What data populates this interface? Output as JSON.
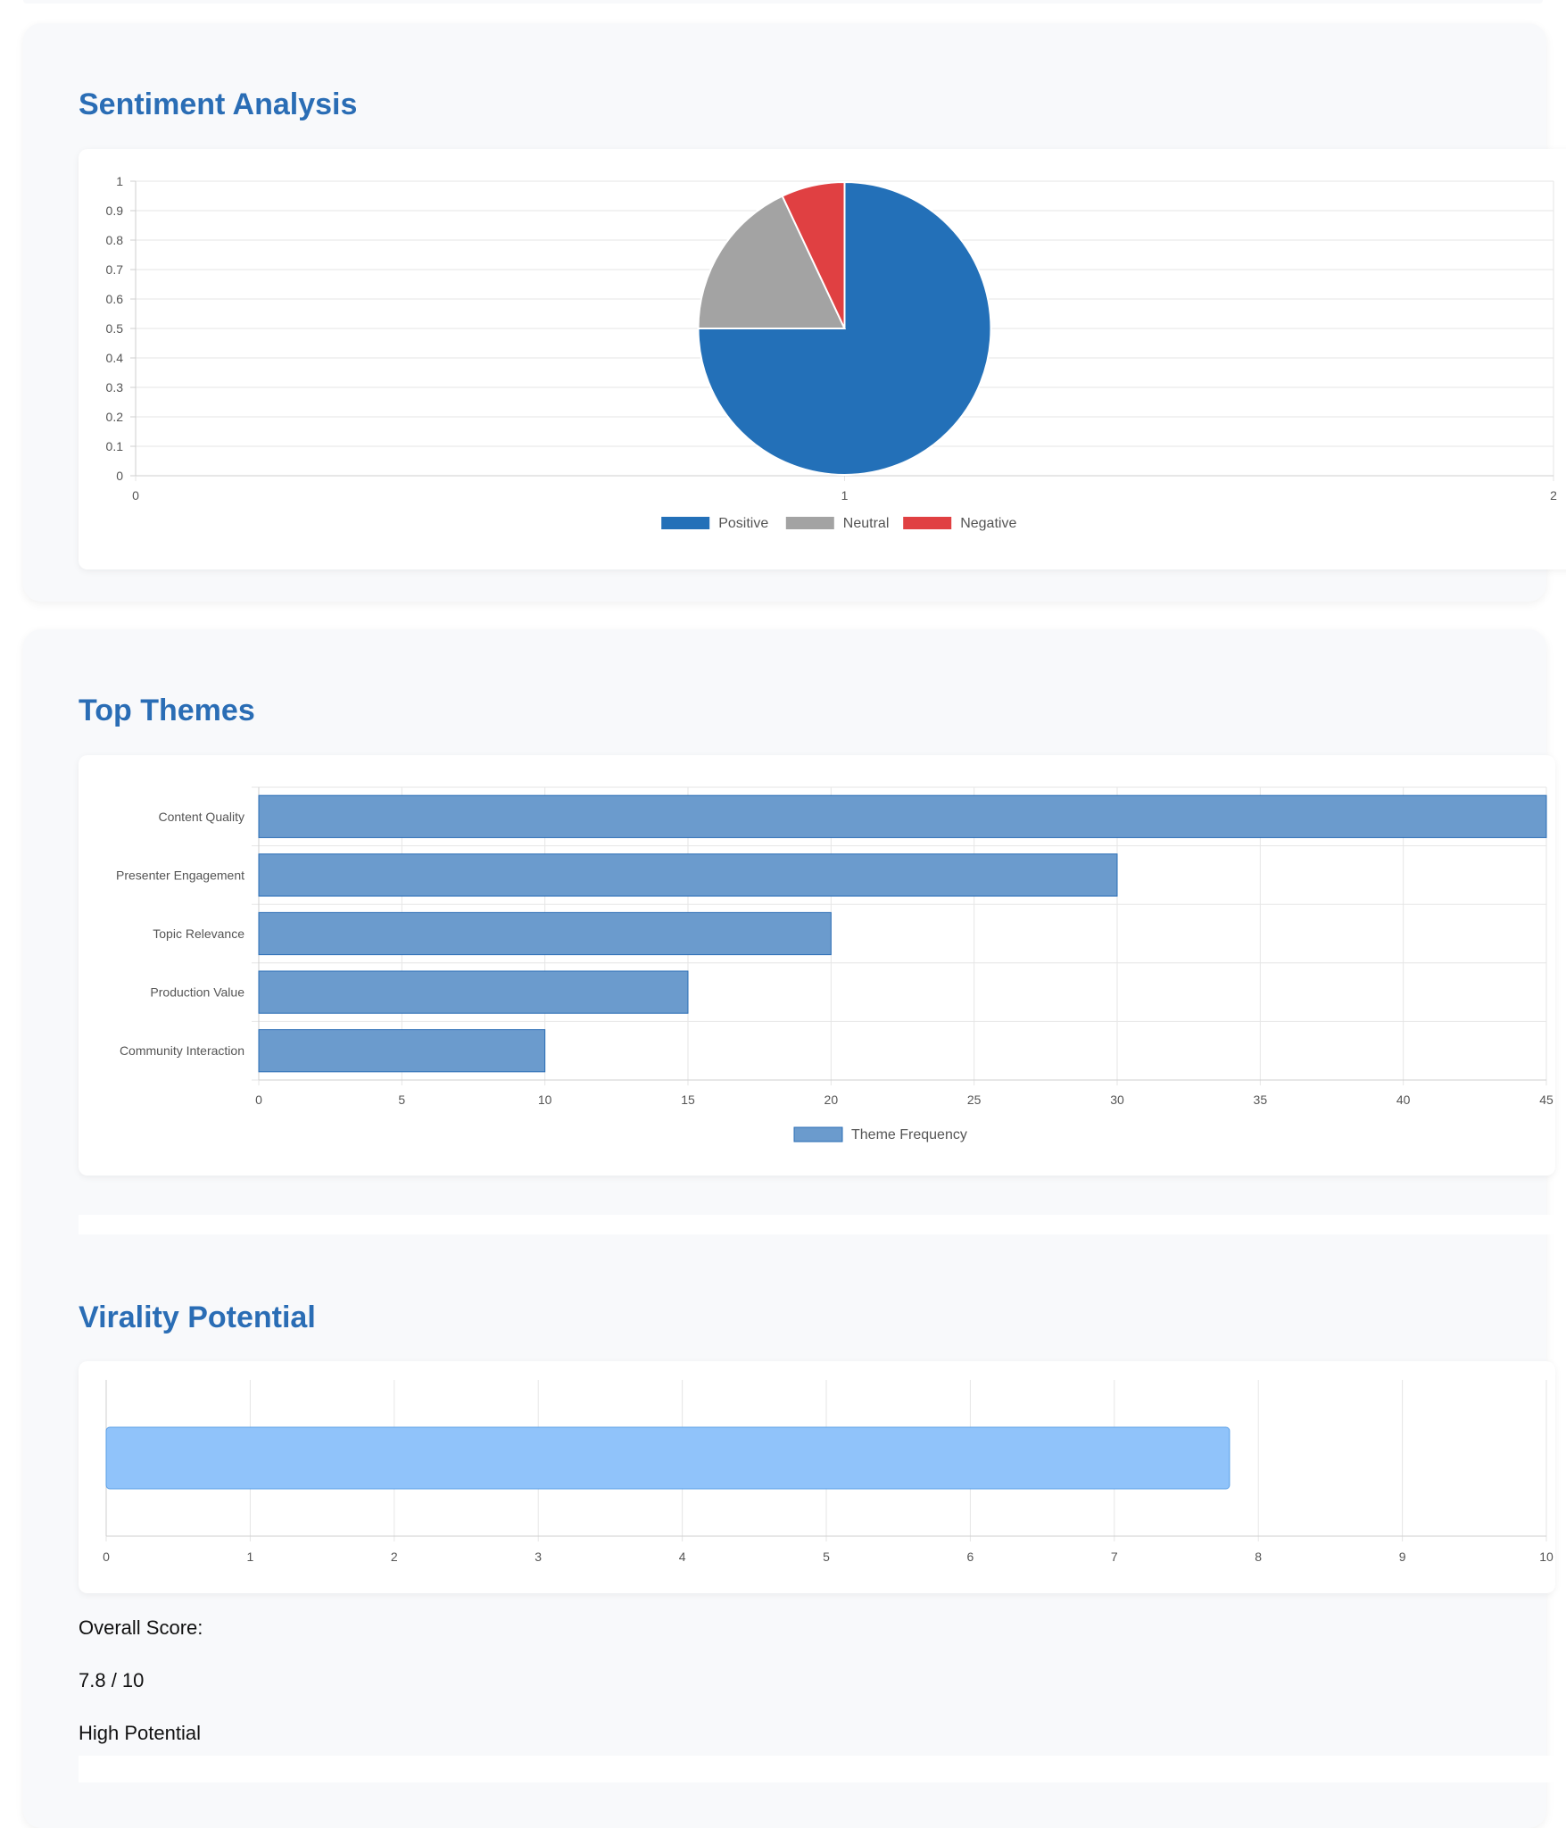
{
  "sections": {
    "sentiment": {
      "title": "Sentiment Analysis"
    },
    "themes": {
      "title": "Top Themes"
    },
    "virality": {
      "title": "Virality Potential",
      "score_label": "Overall Score:",
      "score_value": "7.8 / 10",
      "potential_label": "High Potential"
    }
  },
  "chart_data": [
    {
      "type": "pie",
      "title": "Sentiment Analysis",
      "labels": [
        "Positive",
        "Neutral",
        "Negative"
      ],
      "values": [
        75,
        18,
        7
      ],
      "colors": [
        "#2370b8",
        "#a3a3a3",
        "#e04042"
      ],
      "legend": "bottom",
      "axes": {
        "y_ticks": [
          "0",
          "0.1",
          "0.2",
          "0.3",
          "0.4",
          "0.5",
          "0.6",
          "0.7",
          "0.8",
          "0.9",
          "1"
        ],
        "x_ticks": [
          "0",
          "1",
          "2"
        ],
        "ylim": [
          0,
          1
        ],
        "xlim": [
          0,
          2
        ]
      },
      "grid": true
    },
    {
      "type": "bar",
      "orientation": "horizontal",
      "title": "Top Themes",
      "categories": [
        "Content Quality",
        "Presenter Engagement",
        "Topic Relevance",
        "Production Value",
        "Community Interaction"
      ],
      "series": [
        {
          "name": "Theme Frequency",
          "values": [
            45,
            30,
            20,
            15,
            10
          ]
        }
      ],
      "xlim": [
        0,
        45
      ],
      "x_ticks": [
        "0",
        "5",
        "10",
        "15",
        "20",
        "25",
        "30",
        "35",
        "40",
        "45"
      ],
      "color": "#6b9bcd",
      "border_color": "#2a6db5",
      "legend": "bottom",
      "grid": true
    },
    {
      "type": "bar",
      "orientation": "horizontal",
      "title": "Virality Potential",
      "categories": [
        ""
      ],
      "values": [
        7.8
      ],
      "xlim": [
        0,
        10
      ],
      "x_ticks": [
        "0",
        "1",
        "2",
        "3",
        "4",
        "5",
        "6",
        "7",
        "8",
        "9",
        "10"
      ],
      "color": "#90c3fa",
      "border_color": "#5a9fe6",
      "legend": "none",
      "grid": true
    }
  ]
}
